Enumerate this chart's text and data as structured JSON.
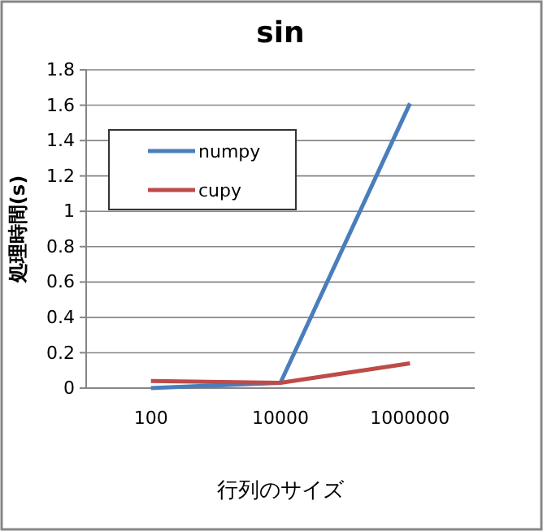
{
  "chart_data": {
    "type": "line",
    "title": "sin",
    "xlabel": "行列のサイズ",
    "ylabel": "処理時間(s)",
    "categories": [
      "100",
      "10000",
      "1000000"
    ],
    "series": [
      {
        "name": "numpy",
        "color": "#4a7ebb",
        "values": [
          0.0,
          0.03,
          1.61
        ]
      },
      {
        "name": "cupy",
        "color": "#be4b48",
        "values": [
          0.04,
          0.03,
          0.14
        ]
      }
    ],
    "ylim": [
      0,
      1.8
    ],
    "yticks": [
      0,
      0.2,
      0.4,
      0.6,
      0.8,
      1,
      1.2,
      1.4,
      1.6,
      1.8
    ],
    "grid": "y",
    "legend": "top left",
    "marker": "none",
    "line_style": "solid"
  }
}
